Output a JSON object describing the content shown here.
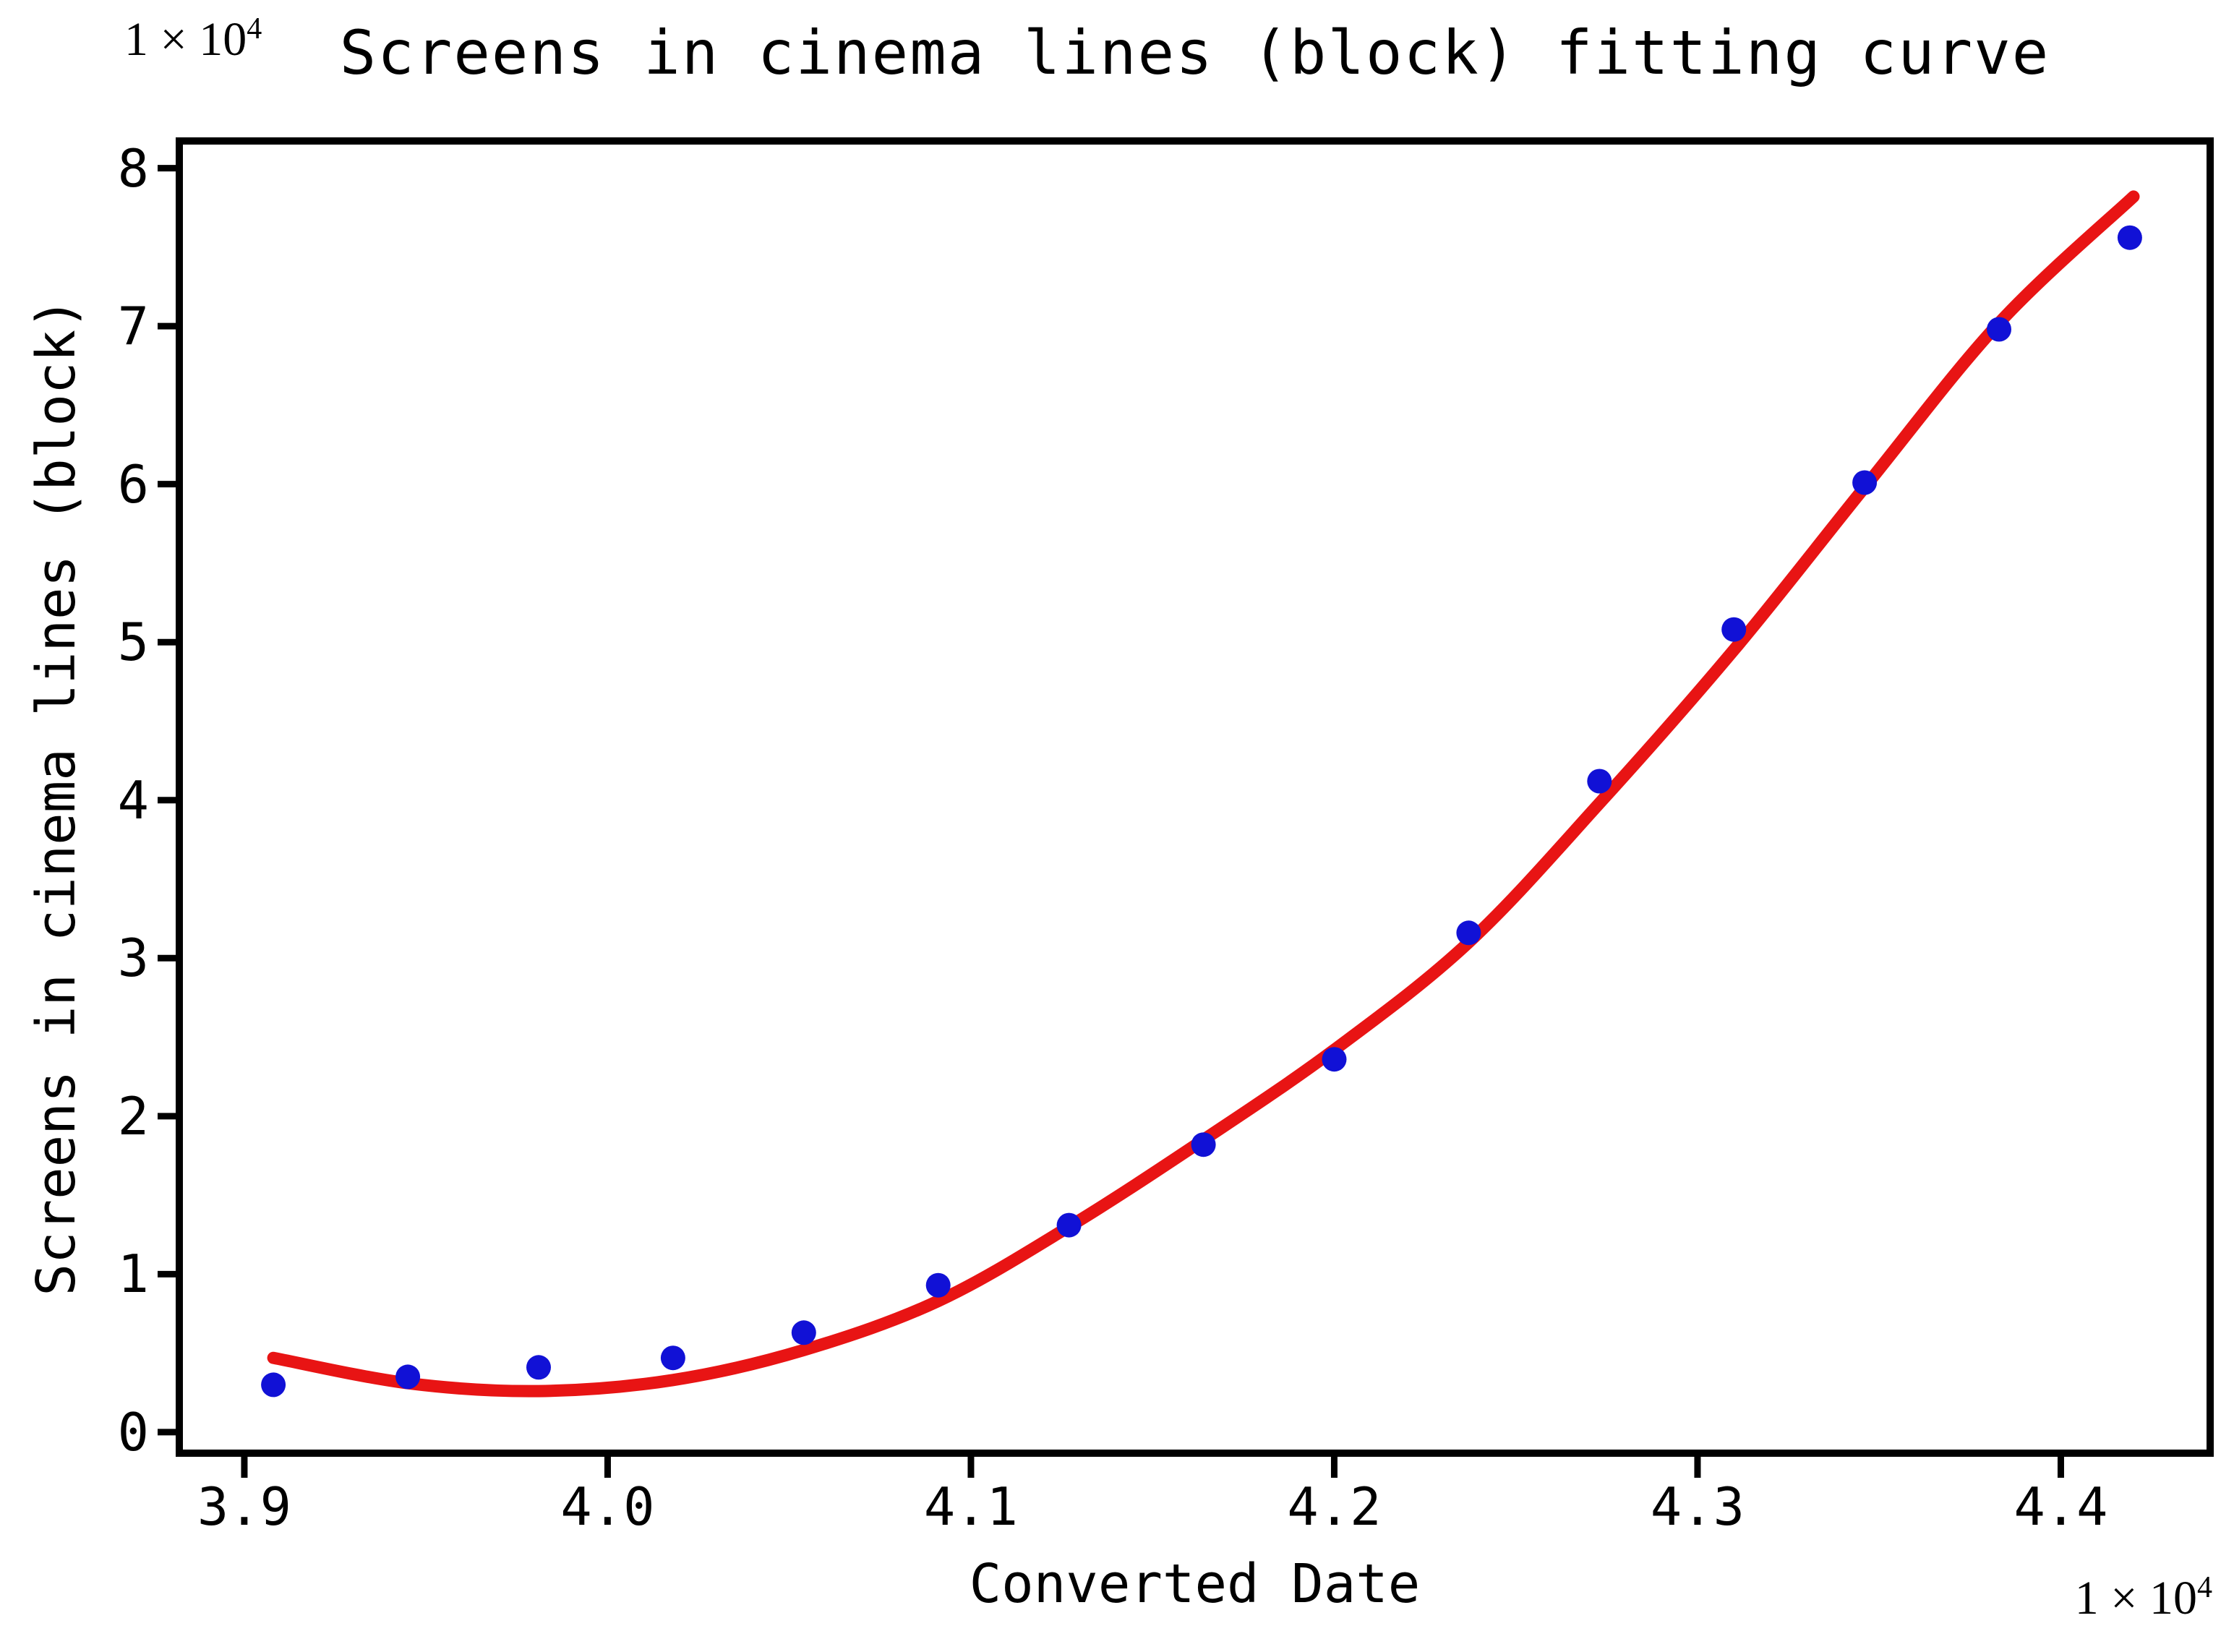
{
  "chart_data": {
    "type": "scatter",
    "title": "Screens in cinema lines (block) fitting curve",
    "xlabel": "Converted Date",
    "ylabel": "Screens in cinema lines (block)",
    "x_offset": {
      "base": "1 × 10",
      "exp": "4"
    },
    "y_offset": {
      "base": "1 × 10",
      "exp": "4"
    },
    "xlim": [
      3.8821,
      4.4411
    ],
    "ylim": [
      -0.133,
      8.172
    ],
    "grid": false,
    "legend": "none",
    "x_ticks": {
      "values": [
        3.9,
        4.0,
        4.1,
        4.2,
        4.3,
        4.4
      ],
      "labels": [
        "3.9",
        "4.0",
        "4.1",
        "4.2",
        "4.3",
        "4.4"
      ]
    },
    "y_ticks": {
      "values": [
        0,
        1,
        2,
        3,
        4,
        5,
        6,
        7,
        8
      ],
      "labels": [
        "0",
        "1",
        "2",
        "3",
        "4",
        "5",
        "6",
        "7",
        "8"
      ]
    },
    "colors": {
      "points": "#1111d6",
      "curve": "#e81414",
      "axes": "#000000"
    },
    "series": [
      {
        "name": "screens-data-points",
        "kind": "scatter",
        "color": "#1111d6",
        "marker_radius": 17,
        "points": [
          [
            3.908,
            0.3
          ],
          [
            3.945,
            0.35
          ],
          [
            3.981,
            0.41
          ],
          [
            4.018,
            0.47
          ],
          [
            4.054,
            0.63
          ],
          [
            4.091,
            0.93
          ],
          [
            4.127,
            1.31
          ],
          [
            4.164,
            1.82
          ],
          [
            4.2,
            2.36
          ],
          [
            4.237,
            3.16
          ],
          [
            4.273,
            4.12
          ],
          [
            4.31,
            5.08
          ],
          [
            4.346,
            6.01
          ],
          [
            4.383,
            6.98
          ],
          [
            4.419,
            7.56
          ]
        ]
      },
      {
        "name": "fitting-curve",
        "kind": "line",
        "color": "#e81414",
        "line_width": 17,
        "points": [
          [
            3.908,
            0.47
          ],
          [
            3.945,
            0.31
          ],
          [
            3.981,
            0.26
          ],
          [
            4.018,
            0.33
          ],
          [
            4.054,
            0.52
          ],
          [
            4.091,
            0.83
          ],
          [
            4.127,
            1.3
          ],
          [
            4.164,
            1.85
          ],
          [
            4.2,
            2.42
          ],
          [
            4.237,
            3.1
          ],
          [
            4.273,
            3.98
          ],
          [
            4.31,
            4.95
          ],
          [
            4.346,
            5.98
          ],
          [
            4.383,
            7.02
          ],
          [
            4.42,
            7.82
          ]
        ]
      }
    ]
  }
}
